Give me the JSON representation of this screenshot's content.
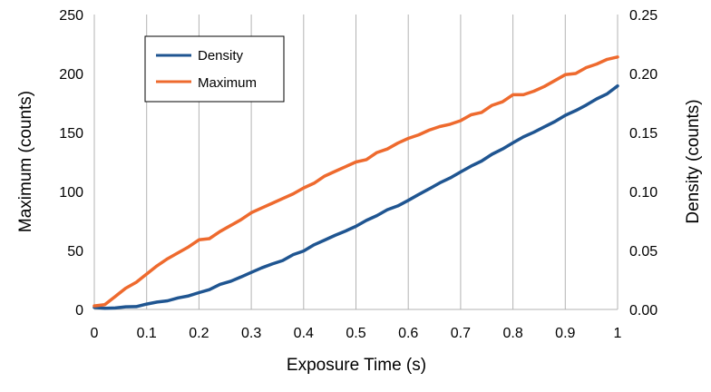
{
  "chart_data": {
    "type": "line",
    "xlabel": "Exposure Time (s)",
    "ylabel_left": "Maximum  (counts)",
    "ylabel_right": "Density  (counts)",
    "xlim": [
      0,
      1
    ],
    "ylim_left": [
      0,
      250
    ],
    "ylim_right": [
      0,
      0.25
    ],
    "x_ticks": [
      "0",
      "0.1",
      "0.2",
      "0.3",
      "0.4",
      "0.5",
      "0.6",
      "0.7",
      "0.8",
      "0.9",
      "1"
    ],
    "x_tick_values": [
      0,
      0.1,
      0.2,
      0.3,
      0.4,
      0.5,
      0.6,
      0.7,
      0.8,
      0.9,
      1
    ],
    "y_left_ticks": [
      "0",
      "50",
      "100",
      "150",
      "200",
      "250"
    ],
    "y_left_tick_values": [
      0,
      50,
      100,
      150,
      200,
      250
    ],
    "y_right_ticks": [
      "0.00",
      "0.05",
      "0.10",
      "0.15",
      "0.20",
      "0.25"
    ],
    "y_right_tick_values": [
      0,
      0.05,
      0.1,
      0.15,
      0.2,
      0.25
    ],
    "grid": "vertical",
    "legend_position": "top-left",
    "series": [
      {
        "name": "Density",
        "axis": "right",
        "color": "#1f5591",
        "x": [
          0,
          0.02,
          0.04,
          0.06,
          0.08,
          0.1,
          0.12,
          0.14,
          0.16,
          0.18,
          0.2,
          0.22,
          0.24,
          0.26,
          0.28,
          0.3,
          0.32,
          0.34,
          0.36,
          0.38,
          0.4,
          0.42,
          0.44,
          0.46,
          0.48,
          0.5,
          0.52,
          0.54,
          0.56,
          0.58,
          0.6,
          0.62,
          0.64,
          0.66,
          0.68,
          0.7,
          0.72,
          0.74,
          0.76,
          0.78,
          0.8,
          0.82,
          0.84,
          0.86,
          0.88,
          0.9,
          0.92,
          0.94,
          0.96,
          0.98,
          1
        ],
        "values": [
          0.0018,
          0.001,
          0.0012,
          0.0022,
          0.0024,
          0.0045,
          0.0062,
          0.0073,
          0.0098,
          0.0115,
          0.0142,
          0.0168,
          0.0212,
          0.0238,
          0.0275,
          0.0314,
          0.0352,
          0.0385,
          0.0415,
          0.0465,
          0.0495,
          0.0548,
          0.0588,
          0.0628,
          0.0665,
          0.0705,
          0.0755,
          0.0795,
          0.0845,
          0.0878,
          0.0925,
          0.0975,
          0.1022,
          0.1072,
          0.1115,
          0.1165,
          0.1215,
          0.1258,
          0.1315,
          0.136,
          0.1412,
          0.1462,
          0.1502,
          0.1548,
          0.1592,
          0.1645,
          0.1685,
          0.1732,
          0.1785,
          0.1828,
          0.1895
        ]
      },
      {
        "name": "Maximum",
        "axis": "left",
        "color": "#ee6a2e",
        "x": [
          0,
          0.02,
          0.04,
          0.06,
          0.08,
          0.1,
          0.12,
          0.14,
          0.16,
          0.18,
          0.2,
          0.22,
          0.24,
          0.26,
          0.28,
          0.3,
          0.32,
          0.34,
          0.36,
          0.38,
          0.4,
          0.42,
          0.44,
          0.46,
          0.48,
          0.5,
          0.52,
          0.54,
          0.56,
          0.58,
          0.6,
          0.62,
          0.64,
          0.66,
          0.68,
          0.7,
          0.72,
          0.74,
          0.76,
          0.78,
          0.8,
          0.82,
          0.84,
          0.86,
          0.88,
          0.9,
          0.92,
          0.94,
          0.96,
          0.98,
          1
        ],
        "values": [
          3,
          4,
          11,
          18,
          23,
          30,
          37,
          43,
          48,
          53,
          59,
          60,
          66,
          71,
          76,
          82,
          86,
          90,
          94,
          98,
          103,
          107,
          113,
          117,
          121,
          125,
          127,
          133,
          136,
          141,
          145,
          148,
          152,
          155,
          157,
          160,
          165,
          167,
          173,
          176,
          182,
          182,
          185,
          189,
          194,
          199,
          200,
          205,
          208,
          212,
          214
        ]
      }
    ]
  }
}
